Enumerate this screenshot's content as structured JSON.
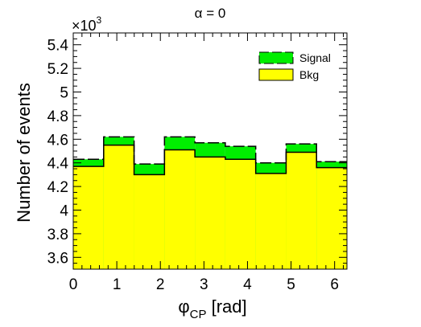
{
  "chart_data": {
    "type": "bar",
    "title": "α = 0",
    "xlabel_main": "φ",
    "xlabel_sub": "CP",
    "xlabel_unit": " [rad]",
    "ylabel": "Number of events",
    "y_multiplier": "×10",
    "y_multiplier_exp": "3",
    "xlim": [
      0,
      6.2832
    ],
    "ylim": [
      3.5,
      5.5
    ],
    "bin_edges": [
      0,
      0.6981,
      1.3963,
      2.0944,
      2.7925,
      3.4907,
      4.1888,
      4.8869,
      5.5851,
      6.2832
    ],
    "x_ticks": [
      0,
      1,
      2,
      3,
      4,
      5,
      6
    ],
    "x_tick_labels": [
      "0",
      "1",
      "2",
      "3",
      "4",
      "5",
      "6"
    ],
    "y_ticks": [
      3.6,
      3.8,
      4.0,
      4.2,
      4.4,
      4.6,
      4.8,
      5.0,
      5.2,
      5.4
    ],
    "y_tick_labels": [
      "3.6",
      "3.8",
      "4",
      "4.2",
      "4.4",
      "4.6",
      "4.8",
      "5",
      "5.2",
      "5.4"
    ],
    "series": [
      {
        "name": "Bkg",
        "values": [
          4.37,
          4.55,
          4.3,
          4.51,
          4.45,
          4.43,
          4.31,
          4.49,
          4.36
        ],
        "color": "#ffff00"
      },
      {
        "name": "Signal",
        "values": [
          4.43,
          4.62,
          4.39,
          4.62,
          4.57,
          4.54,
          4.4,
          4.56,
          4.41
        ],
        "color": "#00ee00"
      }
    ],
    "legend_placement": "top-right",
    "grid": false
  }
}
